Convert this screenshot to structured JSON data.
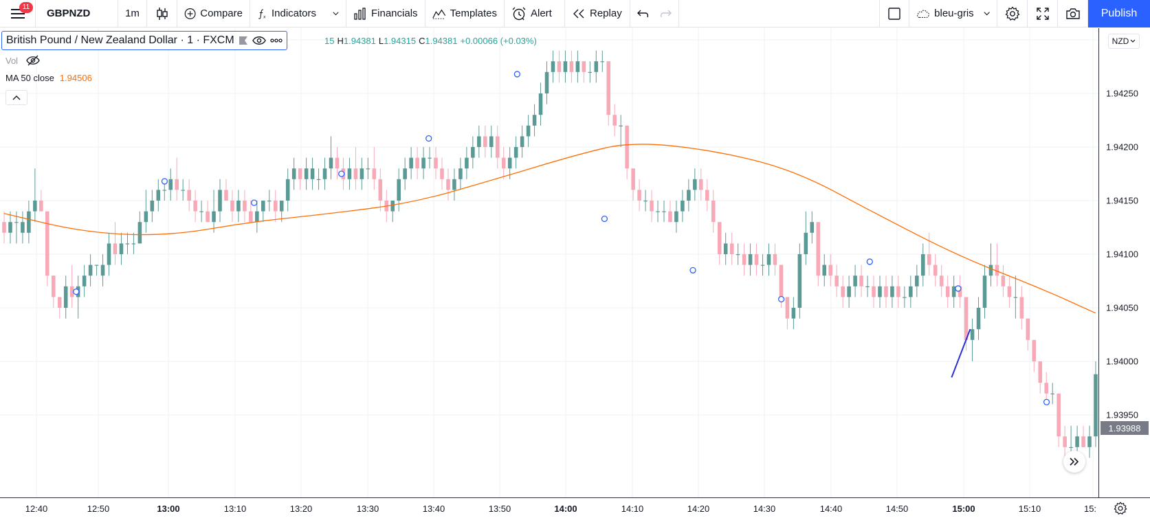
{
  "toolbar": {
    "notification_count": "11",
    "symbol": "GBPNZD",
    "interval": "1m",
    "compare_label": "Compare",
    "indicators_label": "Indicators",
    "financials_label": "Financials",
    "templates_label": "Templates",
    "alert_label": "Alert",
    "replay_label": "Replay",
    "layout_name": "bleu-gris",
    "publish_label": "Publish"
  },
  "legend": {
    "title": "British Pound / New Zealand Dollar · 1 · FXCM",
    "ohlc_prefix": "15",
    "high_key": "H",
    "high": "1.94381",
    "low_key": "L",
    "low": "1.94315",
    "close_key": "C",
    "close": "1.94381",
    "change": "+0.00066 (+0.03%)",
    "vol_label": "Vol",
    "ma_label": "MA 50 close",
    "ma_value": "1.94506"
  },
  "price_scale": {
    "currency": "NZD",
    "last_price": "1.93988",
    "labels": [
      "1.94250",
      "1.94200",
      "1.94150",
      "1.94100",
      "1.94050",
      "1.94000",
      "1.93950"
    ]
  },
  "time_scale": {
    "labels": [
      {
        "text": "12:40",
        "bold": false
      },
      {
        "text": "12:50",
        "bold": false
      },
      {
        "text": "13:00",
        "bold": true
      },
      {
        "text": "13:10",
        "bold": false
      },
      {
        "text": "13:20",
        "bold": false
      },
      {
        "text": "13:30",
        "bold": false
      },
      {
        "text": "13:40",
        "bold": false
      },
      {
        "text": "13:50",
        "bold": false
      },
      {
        "text": "14:00",
        "bold": true
      },
      {
        "text": "14:10",
        "bold": false
      },
      {
        "text": "14:20",
        "bold": false
      },
      {
        "text": "14:30",
        "bold": false
      },
      {
        "text": "14:40",
        "bold": false
      },
      {
        "text": "14:50",
        "bold": false
      },
      {
        "text": "15:00",
        "bold": true
      },
      {
        "text": "15:10",
        "bold": false
      },
      {
        "text": "15:",
        "bold": false
      }
    ]
  },
  "colors": {
    "up": "#5b9a94",
    "down": "#f7a9b8",
    "ma": "#ff6d00",
    "trendline": "#2a2ed9",
    "grid": "#eef0f4",
    "accent": "#2962ff"
  },
  "chart_data": {
    "type": "candlestick",
    "symbol": "GBPNZD",
    "interval": "1m",
    "ylim": [
      1.9391,
      1.943
    ],
    "xrange": [
      "12:36",
      "15:16"
    ],
    "candles": [
      [
        1.9413,
        1.9414,
        1.9411,
        1.9412
      ],
      [
        1.9412,
        1.9414,
        1.9411,
        1.9413
      ],
      [
        1.9413,
        1.9414,
        1.9411,
        1.9413
      ],
      [
        1.9412,
        1.9414,
        1.9411,
        1.9413
      ],
      [
        1.9412,
        1.9415,
        1.9411,
        1.9414
      ],
      [
        1.9414,
        1.9418,
        1.9413,
        1.9415
      ],
      [
        1.9415,
        1.9416,
        1.9414,
        1.9414
      ],
      [
        1.9414,
        1.9414,
        1.9407,
        1.9408
      ],
      [
        1.9408,
        1.9408,
        1.9405,
        1.9406
      ],
      [
        1.9406,
        1.9406,
        1.9404,
        1.9405
      ],
      [
        1.9405,
        1.9408,
        1.9404,
        1.9407
      ],
      [
        1.9407,
        1.9409,
        1.9405,
        1.9406
      ],
      [
        1.9406,
        1.9408,
        1.9404,
        1.9407
      ],
      [
        1.9407,
        1.9409,
        1.9406,
        1.9408
      ],
      [
        1.9408,
        1.941,
        1.9407,
        1.9409
      ],
      [
        1.9409,
        1.9409,
        1.9408,
        1.9409
      ],
      [
        1.9408,
        1.941,
        1.9407,
        1.9409
      ],
      [
        1.9409,
        1.9412,
        1.9408,
        1.9411
      ],
      [
        1.9411,
        1.9413,
        1.9409,
        1.941
      ],
      [
        1.941,
        1.9412,
        1.9409,
        1.9411
      ],
      [
        1.9411,
        1.9412,
        1.941,
        1.9411
      ],
      [
        1.9411,
        1.9412,
        1.941,
        1.9411
      ],
      [
        1.9411,
        1.9414,
        1.9411,
        1.9413
      ],
      [
        1.9413,
        1.9416,
        1.9412,
        1.9414
      ],
      [
        1.9414,
        1.9416,
        1.9413,
        1.9415
      ],
      [
        1.9415,
        1.9417,
        1.9414,
        1.9416
      ],
      [
        1.9416,
        1.9417,
        1.9415,
        1.9416
      ],
      [
        1.9416,
        1.9418,
        1.9415,
        1.9417
      ],
      [
        1.9417,
        1.9419,
        1.9415,
        1.9416
      ],
      [
        1.9416,
        1.9417,
        1.9415,
        1.9416
      ],
      [
        1.9416,
        1.9417,
        1.9414,
        1.9415
      ],
      [
        1.9415,
        1.9416,
        1.9413,
        1.9414
      ],
      [
        1.9414,
        1.9415,
        1.9413,
        1.9414
      ],
      [
        1.9414,
        1.9415,
        1.9413,
        1.9413
      ],
      [
        1.9413,
        1.9416,
        1.9412,
        1.9414
      ],
      [
        1.9414,
        1.9417,
        1.9413,
        1.9416
      ],
      [
        1.9416,
        1.9417,
        1.9415,
        1.9415
      ],
      [
        1.9415,
        1.9416,
        1.9413,
        1.9414
      ],
      [
        1.9414,
        1.9416,
        1.9413,
        1.9415
      ],
      [
        1.9415,
        1.9416,
        1.9413,
        1.9414
      ],
      [
        1.9414,
        1.9415,
        1.9413,
        1.9413
      ],
      [
        1.9413,
        1.9415,
        1.9412,
        1.9414
      ],
      [
        1.9414,
        1.9415,
        1.9413,
        1.9415
      ],
      [
        1.9415,
        1.9416,
        1.9414,
        1.9415
      ],
      [
        1.9415,
        1.9416,
        1.9413,
        1.9414
      ],
      [
        1.9414,
        1.9415,
        1.9413,
        1.9415
      ],
      [
        1.9415,
        1.9418,
        1.9414,
        1.9417
      ],
      [
        1.9417,
        1.9419,
        1.9416,
        1.9418
      ],
      [
        1.9418,
        1.9418,
        1.9416,
        1.9417
      ],
      [
        1.9417,
        1.9419,
        1.9416,
        1.9418
      ],
      [
        1.9417,
        1.9419,
        1.9416,
        1.9418
      ],
      [
        1.9417,
        1.9418,
        1.9416,
        1.9417
      ],
      [
        1.9417,
        1.9419,
        1.9416,
        1.9418
      ],
      [
        1.9418,
        1.9421,
        1.9417,
        1.9419
      ],
      [
        1.9419,
        1.942,
        1.9417,
        1.9418
      ],
      [
        1.9418,
        1.9419,
        1.9416,
        1.9417
      ],
      [
        1.9417,
        1.9419,
        1.9416,
        1.9418
      ],
      [
        1.9418,
        1.942,
        1.9416,
        1.9417
      ],
      [
        1.9417,
        1.9419,
        1.9416,
        1.9418
      ],
      [
        1.9418,
        1.9419,
        1.9417,
        1.9418
      ],
      [
        1.9418,
        1.942,
        1.9416,
        1.9417
      ],
      [
        1.9417,
        1.9418,
        1.9414,
        1.9415
      ],
      [
        1.9415,
        1.9416,
        1.9413,
        1.9414
      ],
      [
        1.9414,
        1.9415,
        1.9413,
        1.9415
      ],
      [
        1.9415,
        1.9418,
        1.9414,
        1.9417
      ],
      [
        1.9417,
        1.9419,
        1.9416,
        1.9418
      ],
      [
        1.9418,
        1.942,
        1.9417,
        1.9419
      ],
      [
        1.9419,
        1.942,
        1.9417,
        1.9418
      ],
      [
        1.9418,
        1.942,
        1.9417,
        1.9419
      ],
      [
        1.9419,
        1.942,
        1.9418,
        1.9419
      ],
      [
        1.9419,
        1.942,
        1.9417,
        1.9418
      ],
      [
        1.9418,
        1.9419,
        1.9416,
        1.9417
      ],
      [
        1.9417,
        1.9418,
        1.9415,
        1.9416
      ],
      [
        1.9416,
        1.9418,
        1.9415,
        1.9417
      ],
      [
        1.9417,
        1.9419,
        1.9416,
        1.9418
      ],
      [
        1.9418,
        1.942,
        1.9417,
        1.9419
      ],
      [
        1.9419,
        1.9421,
        1.9418,
        1.942
      ],
      [
        1.942,
        1.9422,
        1.9419,
        1.9421
      ],
      [
        1.9421,
        1.9422,
        1.9419,
        1.942
      ],
      [
        1.942,
        1.9422,
        1.9419,
        1.9421
      ],
      [
        1.9421,
        1.9422,
        1.9418,
        1.9419
      ],
      [
        1.9419,
        1.942,
        1.9417,
        1.9418
      ],
      [
        1.9418,
        1.942,
        1.9417,
        1.9419
      ],
      [
        1.9419,
        1.9421,
        1.9418,
        1.942
      ],
      [
        1.942,
        1.9422,
        1.9419,
        1.9421
      ],
      [
        1.9421,
        1.9423,
        1.942,
        1.9422
      ],
      [
        1.9422,
        1.9424,
        1.9421,
        1.9423
      ],
      [
        1.9423,
        1.9426,
        1.9422,
        1.9425
      ],
      [
        1.9425,
        1.9428,
        1.9424,
        1.9427
      ],
      [
        1.9427,
        1.9429,
        1.9426,
        1.9428
      ],
      [
        1.9428,
        1.9429,
        1.9426,
        1.9427
      ],
      [
        1.9427,
        1.9429,
        1.9426,
        1.9428
      ],
      [
        1.9428,
        1.9429,
        1.9426,
        1.9427
      ],
      [
        1.9427,
        1.9429,
        1.9426,
        1.9428
      ],
      [
        1.9428,
        1.9428,
        1.9426,
        1.9427
      ],
      [
        1.9427,
        1.9428,
        1.9426,
        1.9427
      ],
      [
        1.9427,
        1.9429,
        1.9426,
        1.9428
      ],
      [
        1.9428,
        1.9429,
        1.9427,
        1.9428
      ],
      [
        1.9428,
        1.9428,
        1.9422,
        1.9423
      ],
      [
        1.9423,
        1.9424,
        1.9421,
        1.9422
      ],
      [
        1.9422,
        1.9423,
        1.942,
        1.9422
      ],
      [
        1.9422,
        1.9422,
        1.9417,
        1.9418
      ],
      [
        1.9418,
        1.9418,
        1.9415,
        1.9416
      ],
      [
        1.9416,
        1.9417,
        1.9414,
        1.9415
      ],
      [
        1.9415,
        1.9416,
        1.9414,
        1.9415
      ],
      [
        1.9415,
        1.9416,
        1.9413,
        1.9414
      ],
      [
        1.9414,
        1.9415,
        1.9413,
        1.9414
      ],
      [
        1.9414,
        1.9415,
        1.9413,
        1.9414
      ],
      [
        1.9414,
        1.9415,
        1.9413,
        1.9413
      ],
      [
        1.9413,
        1.9415,
        1.9412,
        1.9414
      ],
      [
        1.9414,
        1.9416,
        1.9413,
        1.9415
      ],
      [
        1.9415,
        1.9417,
        1.9414,
        1.9416
      ],
      [
        1.9416,
        1.9418,
        1.9415,
        1.9417
      ],
      [
        1.9417,
        1.9418,
        1.9415,
        1.9416
      ],
      [
        1.9416,
        1.9417,
        1.9414,
        1.9415
      ],
      [
        1.9415,
        1.9416,
        1.9412,
        1.9413
      ],
      [
        1.9413,
        1.9413,
        1.9409,
        1.941
      ],
      [
        1.941,
        1.9412,
        1.9409,
        1.9411
      ],
      [
        1.9411,
        1.9412,
        1.9409,
        1.941
      ],
      [
        1.941,
        1.9411,
        1.9409,
        1.941
      ],
      [
        1.941,
        1.9411,
        1.9408,
        1.9409
      ],
      [
        1.9409,
        1.9411,
        1.9408,
        1.941
      ],
      [
        1.941,
        1.9411,
        1.9408,
        1.9409
      ],
      [
        1.9409,
        1.941,
        1.9408,
        1.9409
      ],
      [
        1.9409,
        1.9411,
        1.9408,
        1.941
      ],
      [
        1.941,
        1.9411,
        1.9408,
        1.9409
      ],
      [
        1.9409,
        1.9409,
        1.9405,
        1.9406
      ],
      [
        1.9406,
        1.9406,
        1.9403,
        1.9404
      ],
      [
        1.9404,
        1.9406,
        1.9403,
        1.9405
      ],
      [
        1.9405,
        1.9411,
        1.9404,
        1.941
      ],
      [
        1.941,
        1.9414,
        1.9409,
        1.9412
      ],
      [
        1.9412,
        1.9414,
        1.9411,
        1.9413
      ],
      [
        1.9413,
        1.9413,
        1.9407,
        1.9408
      ],
      [
        1.9408,
        1.941,
        1.9407,
        1.9409
      ],
      [
        1.9409,
        1.941,
        1.9407,
        1.9408
      ],
      [
        1.9408,
        1.9409,
        1.9406,
        1.9407
      ],
      [
        1.9407,
        1.9408,
        1.9405,
        1.9406
      ],
      [
        1.9406,
        1.9408,
        1.9405,
        1.9407
      ],
      [
        1.9407,
        1.9409,
        1.9406,
        1.9408
      ],
      [
        1.9408,
        1.9409,
        1.9406,
        1.9407
      ],
      [
        1.9407,
        1.9408,
        1.9406,
        1.9407
      ],
      [
        1.9407,
        1.9408,
        1.9405,
        1.9406
      ],
      [
        1.9406,
        1.9408,
        1.9405,
        1.9407
      ],
      [
        1.9407,
        1.9408,
        1.9405,
        1.9406
      ],
      [
        1.9406,
        1.9408,
        1.9405,
        1.9407
      ],
      [
        1.9407,
        1.9408,
        1.9405,
        1.9406
      ],
      [
        1.9406,
        1.9407,
        1.9405,
        1.9406
      ],
      [
        1.9406,
        1.9408,
        1.9405,
        1.9407
      ],
      [
        1.9407,
        1.9409,
        1.9406,
        1.9408
      ],
      [
        1.9408,
        1.9411,
        1.9407,
        1.941
      ],
      [
        1.941,
        1.9412,
        1.9408,
        1.9409
      ],
      [
        1.9409,
        1.941,
        1.9407,
        1.9408
      ],
      [
        1.9408,
        1.9409,
        1.9406,
        1.9407
      ],
      [
        1.9407,
        1.9408,
        1.9405,
        1.9406
      ],
      [
        1.9406,
        1.9408,
        1.9405,
        1.9407
      ],
      [
        1.9407,
        1.9408,
        1.9405,
        1.9406
      ],
      [
        1.9406,
        1.9406,
        1.9401,
        1.9402
      ],
      [
        1.9402,
        1.9404,
        1.94,
        1.9403
      ],
      [
        1.9403,
        1.9406,
        1.9402,
        1.9405
      ],
      [
        1.9405,
        1.9409,
        1.9404,
        1.9408
      ],
      [
        1.9408,
        1.9411,
        1.9407,
        1.9409
      ],
      [
        1.9409,
        1.9411,
        1.9407,
        1.9408
      ],
      [
        1.9408,
        1.9409,
        1.9406,
        1.9407
      ],
      [
        1.9407,
        1.9408,
        1.9405,
        1.9406
      ],
      [
        1.9406,
        1.9408,
        1.9404,
        1.9406
      ],
      [
        1.9406,
        1.9407,
        1.9403,
        1.9404
      ],
      [
        1.9404,
        1.9404,
        1.9401,
        1.9402
      ],
      [
        1.9402,
        1.9402,
        1.9399,
        1.94
      ],
      [
        1.94,
        1.94,
        1.9397,
        1.9398
      ],
      [
        1.9398,
        1.9399,
        1.9396,
        1.9397
      ],
      [
        1.9397,
        1.9398,
        1.9396,
        1.9397
      ],
      [
        1.9397,
        1.9397,
        1.9392,
        1.9393
      ],
      [
        1.9393,
        1.9394,
        1.9391,
        1.9392
      ],
      [
        1.9392,
        1.9394,
        1.9391,
        1.9392
      ],
      [
        1.9392,
        1.9394,
        1.9391,
        1.9393
      ],
      [
        1.9393,
        1.9394,
        1.9392,
        1.9392
      ],
      [
        1.9392,
        1.9394,
        1.9391,
        1.9393
      ],
      [
        1.9393,
        1.94,
        1.9392,
        1.93988
      ]
    ],
    "ma50": [
      [
        0,
        1.94138
      ],
      [
        30,
        1.9412
      ],
      [
        60,
        1.94117
      ],
      [
        90,
        1.9413
      ],
      [
        120,
        1.94138
      ],
      [
        150,
        1.94148
      ],
      [
        180,
        1.9417
      ],
      [
        210,
        1.94193
      ],
      [
        230,
        1.94205
      ],
      [
        260,
        1.94197
      ],
      [
        290,
        1.94178
      ],
      [
        320,
        1.94137
      ],
      [
        350,
        1.94098
      ],
      [
        380,
        1.94068
      ],
      [
        400,
        1.94045
      ]
    ],
    "markers": [
      [
        0.066,
        1.94065
      ],
      [
        0.147,
        1.94168
      ],
      [
        0.229,
        1.94148
      ],
      [
        0.309,
        1.94175
      ],
      [
        0.389,
        1.94208
      ],
      [
        0.47,
        1.94268
      ],
      [
        0.55,
        1.94133
      ],
      [
        0.631,
        1.94085
      ],
      [
        0.712,
        1.94058
      ],
      [
        0.793,
        1.94093
      ],
      [
        0.874,
        1.94068
      ],
      [
        0.955,
        1.93962
      ]
    ],
    "trendline": [
      [
        0.868,
        1.93985
      ],
      [
        0.885,
        1.9403
      ]
    ]
  }
}
